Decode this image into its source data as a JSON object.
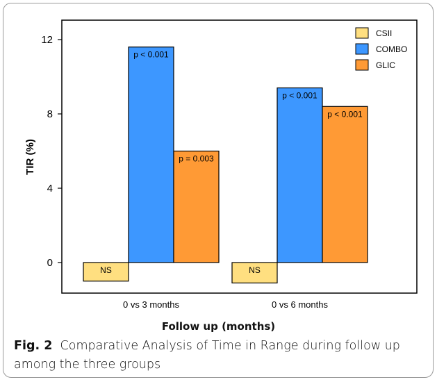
{
  "chart_data": {
    "type": "bar",
    "categories": [
      "0 vs 3 months",
      "0 vs 6 months"
    ],
    "series": [
      {
        "name": "CSII",
        "values": [
          -1.0,
          -1.1
        ],
        "labels": [
          "NS",
          "NS"
        ],
        "color": "#ffdf80"
      },
      {
        "name": "COMBO",
        "values": [
          11.6,
          9.4
        ],
        "labels": [
          "p < 0.001",
          "p < 0.001"
        ],
        "color": "#3d97ff"
      },
      {
        "name": "GLIC",
        "values": [
          6.0,
          8.4
        ],
        "labels": [
          "p = 0.003",
          "p < 0.001"
        ],
        "color": "#ff9a35"
      }
    ],
    "ylabel": "TIR (%)",
    "xlabel": "Follow up (months)",
    "yticks": [
      0,
      4,
      8,
      12
    ],
    "ylim": [
      -1.5,
      13.2
    ],
    "legend": "top-right",
    "grid": false
  },
  "caption": {
    "label": "Fig. 2",
    "text": "Comparative Analysis of Time in Range during follow up among the three groups"
  }
}
